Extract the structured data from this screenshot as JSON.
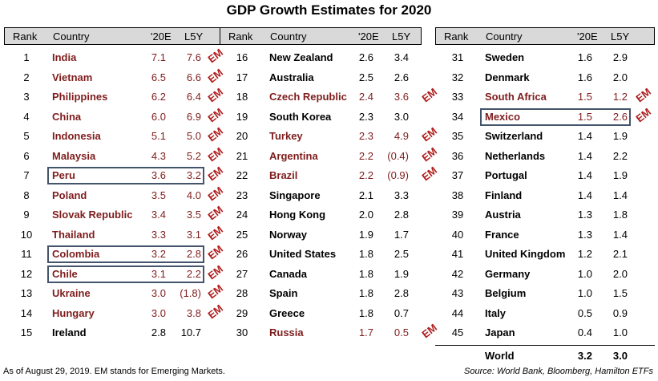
{
  "title": "GDP Growth Estimates for 2020",
  "headers": {
    "rank": "Rank",
    "country": "Country",
    "e20": "'20E",
    "l5y": "L5Y"
  },
  "em_label": "EM",
  "colors": {
    "em_country": "#7f1d1d",
    "em_tag": "#b01c1c",
    "header_bg": "#d9d9d9",
    "highlight_box": "#44546a"
  },
  "chart_data": {
    "type": "table",
    "title": "GDP Growth Estimates for 2020",
    "columns": [
      "Rank",
      "Country",
      "'20E",
      "L5Y"
    ],
    "rows": [
      {
        "rank": "1",
        "country": "India",
        "e20": "7.1",
        "l5y": "7.6",
        "em": true
      },
      {
        "rank": "2",
        "country": "Vietnam",
        "e20": "6.5",
        "l5y": "6.6",
        "em": true
      },
      {
        "rank": "3",
        "country": "Philippines",
        "e20": "6.2",
        "l5y": "6.4",
        "em": true
      },
      {
        "rank": "4",
        "country": "China",
        "e20": "6.0",
        "l5y": "6.9",
        "em": true
      },
      {
        "rank": "5",
        "country": "Indonesia",
        "e20": "5.1",
        "l5y": "5.0",
        "em": true
      },
      {
        "rank": "6",
        "country": "Malaysia",
        "e20": "4.3",
        "l5y": "5.2",
        "em": true
      },
      {
        "rank": "7",
        "country": "Peru",
        "e20": "3.6",
        "l5y": "3.2",
        "em": true,
        "highlight": true
      },
      {
        "rank": "8",
        "country": "Poland",
        "e20": "3.5",
        "l5y": "4.0",
        "em": true
      },
      {
        "rank": "9",
        "country": "Slovak Republic",
        "e20": "3.4",
        "l5y": "3.5",
        "em": true
      },
      {
        "rank": "10",
        "country": "Thailand",
        "e20": "3.3",
        "l5y": "3.1",
        "em": true
      },
      {
        "rank": "11",
        "country": "Colombia",
        "e20": "3.2",
        "l5y": "2.8",
        "em": true,
        "highlight": true
      },
      {
        "rank": "12",
        "country": "Chile",
        "e20": "3.1",
        "l5y": "2.2",
        "em": true,
        "highlight": true
      },
      {
        "rank": "13",
        "country": "Ukraine",
        "e20": "3.0",
        "l5y": "(1.8)",
        "em": true
      },
      {
        "rank": "14",
        "country": "Hungary",
        "e20": "3.0",
        "l5y": "3.8",
        "em": true
      },
      {
        "rank": "15",
        "country": "Ireland",
        "e20": "2.8",
        "l5y": "10.7",
        "em": false
      },
      {
        "rank": "16",
        "country": "New Zealand",
        "e20": "2.6",
        "l5y": "3.4",
        "em": false
      },
      {
        "rank": "17",
        "country": "Australia",
        "e20": "2.5",
        "l5y": "2.6",
        "em": false
      },
      {
        "rank": "18",
        "country": "Czech Republic",
        "e20": "2.4",
        "l5y": "3.6",
        "em": true
      },
      {
        "rank": "19",
        "country": "South Korea",
        "e20": "2.3",
        "l5y": "3.0",
        "em": false
      },
      {
        "rank": "20",
        "country": "Turkey",
        "e20": "2.3",
        "l5y": "4.9",
        "em": true
      },
      {
        "rank": "21",
        "country": "Argentina",
        "e20": "2.2",
        "l5y": "(0.4)",
        "em": true
      },
      {
        "rank": "22",
        "country": "Brazil",
        "e20": "2.2",
        "l5y": "(0.9)",
        "em": true
      },
      {
        "rank": "23",
        "country": "Singapore",
        "e20": "2.1",
        "l5y": "3.3",
        "em": false
      },
      {
        "rank": "24",
        "country": "Hong Kong",
        "e20": "2.0",
        "l5y": "2.8",
        "em": false
      },
      {
        "rank": "25",
        "country": "Norway",
        "e20": "1.9",
        "l5y": "1.7",
        "em": false
      },
      {
        "rank": "26",
        "country": "United States",
        "e20": "1.8",
        "l5y": "2.5",
        "em": false
      },
      {
        "rank": "27",
        "country": "Canada",
        "e20": "1.8",
        "l5y": "1.9",
        "em": false
      },
      {
        "rank": "28",
        "country": "Spain",
        "e20": "1.8",
        "l5y": "2.8",
        "em": false
      },
      {
        "rank": "29",
        "country": "Greece",
        "e20": "1.8",
        "l5y": "0.7",
        "em": false
      },
      {
        "rank": "30",
        "country": "Russia",
        "e20": "1.7",
        "l5y": "0.5",
        "em": true
      },
      {
        "rank": "31",
        "country": "Sweden",
        "e20": "1.6",
        "l5y": "2.9",
        "em": false
      },
      {
        "rank": "32",
        "country": "Denmark",
        "e20": "1.6",
        "l5y": "2.0",
        "em": false
      },
      {
        "rank": "33",
        "country": "South Africa",
        "e20": "1.5",
        "l5y": "1.2",
        "em": true
      },
      {
        "rank": "34",
        "country": "Mexico",
        "e20": "1.5",
        "l5y": "2.6",
        "em": true,
        "highlight": true
      },
      {
        "rank": "35",
        "country": "Switzerland",
        "e20": "1.4",
        "l5y": "1.9",
        "em": false
      },
      {
        "rank": "36",
        "country": "Netherlands",
        "e20": "1.4",
        "l5y": "2.2",
        "em": false
      },
      {
        "rank": "37",
        "country": "Portugal",
        "e20": "1.4",
        "l5y": "1.9",
        "em": false
      },
      {
        "rank": "38",
        "country": "Finland",
        "e20": "1.4",
        "l5y": "1.4",
        "em": false
      },
      {
        "rank": "39",
        "country": "Austria",
        "e20": "1.3",
        "l5y": "1.8",
        "em": false
      },
      {
        "rank": "40",
        "country": "France",
        "e20": "1.3",
        "l5y": "1.4",
        "em": false
      },
      {
        "rank": "41",
        "country": "United Kingdom",
        "e20": "1.2",
        "l5y": "2.1",
        "em": false
      },
      {
        "rank": "42",
        "country": "Germany",
        "e20": "1.0",
        "l5y": "2.0",
        "em": false
      },
      {
        "rank": "43",
        "country": "Belgium",
        "e20": "1.0",
        "l5y": "1.5",
        "em": false
      },
      {
        "rank": "44",
        "country": "Italy",
        "e20": "0.5",
        "l5y": "0.9",
        "em": false
      },
      {
        "rank": "45",
        "country": "Japan",
        "e20": "0.4",
        "l5y": "1.0",
        "em": false
      }
    ],
    "world": {
      "country": "World",
      "e20": "3.2",
      "l5y": "3.0"
    }
  },
  "footer": {
    "left": "As of August 29, 2019. EM stands for Emerging Markets.",
    "right": "Source: World Bank, Bloomberg, Hamilton ETFs"
  }
}
